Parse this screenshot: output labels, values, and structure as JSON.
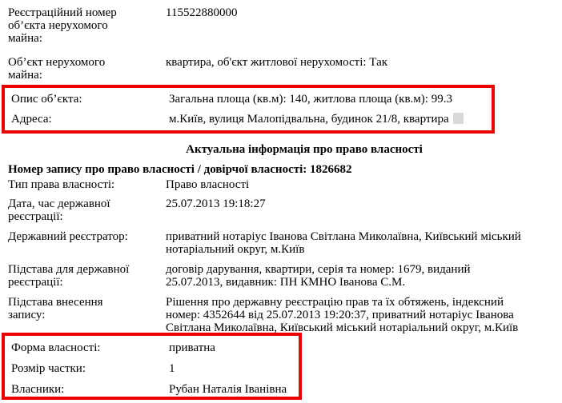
{
  "colors": {
    "highlight_border": "#ee0000",
    "redaction_bg": "#d9d9d9",
    "text": "#000000",
    "background": "#ffffff"
  },
  "rows_top": [
    {
      "label": "Реєстраційний номер\nоб’єкта нерухомого\nмайна:",
      "value": "115522880000"
    },
    {
      "label": "Об’єкт нерухомого\nмайна:",
      "value": "квартира, об'єкт житлової нерухомості: Так"
    }
  ],
  "highlight1": [
    {
      "label": "Опис об’єкта:",
      "value": "Загальна площа (кв.м): 140, житлова площа (кв.м): 99.3"
    },
    {
      "label": "Адреса:",
      "value": "м.Київ, вулиця Малопідвальна, будинок 21/8, квартира",
      "redacted": true
    }
  ],
  "section_title": "Актуальна інформація про право власності",
  "record_line": "Номер запису про право власності / довірчої власності: 1826682",
  "rows_mid": [
    {
      "label": "Тип права власності:",
      "value": "Право власності"
    },
    {
      "label": "Дата, час державної\nреєстрації:",
      "value": "25.07.2013 19:18:27"
    },
    {
      "label": "Державний реєстратор:",
      "value": "приватний нотаріус Іванова Світлана Миколаївна, Київський міський\nнотаріальний округ, м.Київ"
    },
    {
      "label": "Підстава для державної\nреєстрації:",
      "value": "договір дарування, квартири, серія та номер: 1679, виданий\n25.07.2013, видавник: ПН КМНО Іванова С.М."
    },
    {
      "label": "Підстава внесення\nзапису:",
      "value": "Рішення про державну реєстрацію прав та їх обтяжень, індексний\nномер: 4352644 від 25.07.2013 19:20:37, приватний нотаріус Іванова\nСвітлана Миколаївна, Київський міський нотаріальний округ, м.Київ"
    }
  ],
  "highlight2": [
    {
      "label": "Форма власності:",
      "value": "приватна"
    },
    {
      "label": "Розмір частки:",
      "value": "1"
    },
    {
      "label": "Власники:",
      "value": "Рубан Наталія Іванівна"
    }
  ]
}
